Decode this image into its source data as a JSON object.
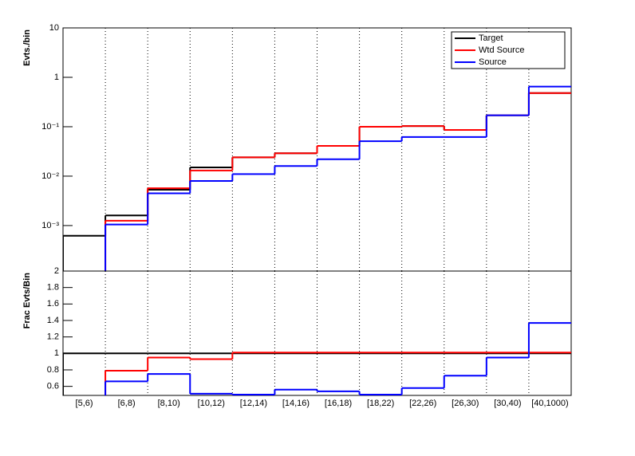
{
  "chart_data": [
    {
      "type": "step",
      "y_label": "Evts./bin",
      "log_y": true,
      "x_grid": true,
      "ylim": [
        0.00012,
        10
      ],
      "yticks": [
        {
          "value": 10,
          "label": "10"
        },
        {
          "value": 1,
          "label": "1"
        },
        {
          "value": 0.1,
          "label": "10⁻¹"
        },
        {
          "value": 0.01,
          "label": "10⁻²"
        },
        {
          "value": 0.001,
          "label": "10⁻³"
        }
      ],
      "legend": "top-right",
      "series": [
        {
          "name": "Target",
          "color": "#000000",
          "values": [
            0.00062,
            0.0016,
            0.0053,
            0.015,
            0.024,
            0.029,
            0.041,
            0.1,
            0.103,
            0.086,
            0.17,
            0.48
          ]
        },
        {
          "name": "Wtd Source",
          "color": "#ff0000",
          "values": [
            null,
            0.00125,
            0.0057,
            0.013,
            0.024,
            0.029,
            0.041,
            0.1,
            0.103,
            0.086,
            0.17,
            0.48
          ]
        },
        {
          "name": "Source",
          "color": "#0000ff",
          "values": [
            null,
            0.00105,
            0.0045,
            0.008,
            0.011,
            0.016,
            0.022,
            0.051,
            0.062,
            0.062,
            0.17,
            0.65
          ]
        }
      ]
    },
    {
      "type": "step",
      "y_label": "Frac Evts/Bin",
      "x_grid": true,
      "categories": [
        "[5,6)",
        "[6,8)",
        "[8,10)",
        "[10,12)",
        "[12,14)",
        "[14,16)",
        "[16,18)",
        "[18,22)",
        "[22,26)",
        "[26,30)",
        "[30,40)",
        "[40,1000)"
      ],
      "ylim": [
        0.49,
        2.0
      ],
      "yticks": [
        0.6,
        0.8,
        1,
        1.2,
        1.4,
        1.6,
        1.8,
        2
      ],
      "series": [
        {
          "color": "#000000",
          "values": [
            1,
            1,
            1,
            1,
            1,
            1,
            1,
            1,
            1,
            1,
            1,
            1
          ]
        },
        {
          "color": "#ff0000",
          "values": [
            null,
            0.79,
            0.95,
            0.93,
            1.01,
            1.01,
            1.01,
            1.01,
            1.01,
            1.01,
            1.01,
            1.01
          ]
        },
        {
          "color": "#0000ff",
          "values": [
            null,
            0.66,
            0.75,
            0.51,
            0.5,
            0.56,
            0.54,
            0.5,
            0.58,
            0.73,
            0.95,
            1.37
          ]
        }
      ]
    }
  ]
}
